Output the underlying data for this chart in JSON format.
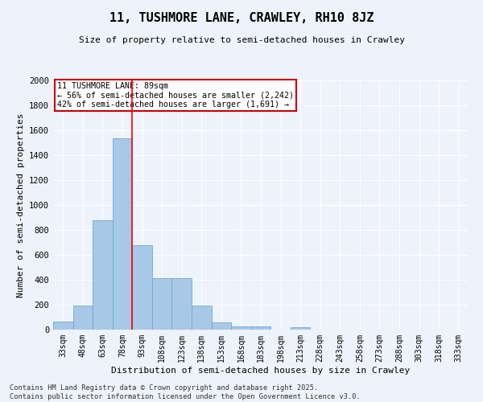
{
  "title_line1": "11, TUSHMORE LANE, CRAWLEY, RH10 8JZ",
  "title_line2": "Size of property relative to semi-detached houses in Crawley",
  "xlabel": "Distribution of semi-detached houses by size in Crawley",
  "ylabel": "Number of semi-detached properties",
  "categories": [
    "33sqm",
    "48sqm",
    "63sqm",
    "78sqm",
    "93sqm",
    "108sqm",
    "123sqm",
    "138sqm",
    "153sqm",
    "168sqm",
    "183sqm",
    "198sqm",
    "213sqm",
    "228sqm",
    "243sqm",
    "258sqm",
    "273sqm",
    "288sqm",
    "303sqm",
    "318sqm",
    "333sqm"
  ],
  "values": [
    65,
    195,
    875,
    1535,
    680,
    415,
    415,
    195,
    55,
    25,
    25,
    0,
    20,
    0,
    0,
    0,
    0,
    0,
    0,
    0,
    0
  ],
  "bar_color": "#a8c8e8",
  "bar_edge_color": "#6aaad4",
  "red_line_index": 3.5,
  "annotation_title": "11 TUSHMORE LANE: 89sqm",
  "annotation_line1": "← 56% of semi-detached houses are smaller (2,242)",
  "annotation_line2": "42% of semi-detached houses are larger (1,691) →",
  "annotation_box_color": "#ffffff",
  "annotation_box_edge_color": "#cc0000",
  "ylim": [
    0,
    2000
  ],
  "yticks": [
    0,
    200,
    400,
    600,
    800,
    1000,
    1200,
    1400,
    1600,
    1800,
    2000
  ],
  "footer_line1": "Contains HM Land Registry data © Crown copyright and database right 2025.",
  "footer_line2": "Contains public sector information licensed under the Open Government Licence v3.0.",
  "bg_color": "#eef2fa",
  "grid_color": "#ffffff"
}
